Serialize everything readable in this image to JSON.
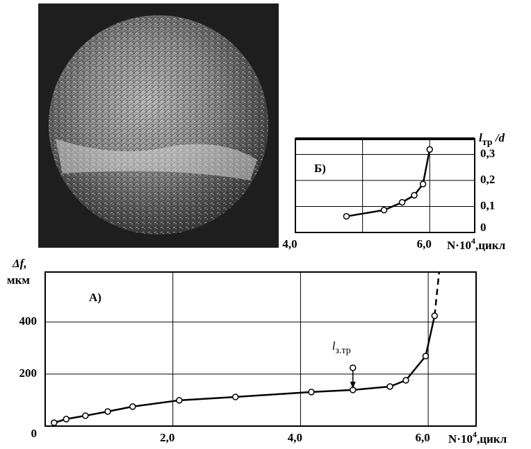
{
  "chart_data": [
    {
      "type": "line",
      "panel": "А)",
      "ylabel": {
        "main": "Δf,",
        "unit": "мкм"
      },
      "xlabel": {
        "main": "N·10",
        "sup": "4",
        "rest": ",цикл"
      },
      "x": [
        0.14,
        0.33,
        0.63,
        0.98,
        1.37,
        2.1,
        2.98,
        4.17,
        4.82,
        5.4,
        5.65,
        5.96,
        6.1
      ],
      "values": [
        13,
        27,
        40,
        56,
        75,
        99,
        112,
        131,
        139,
        152,
        176,
        269,
        424
      ],
      "extrapolation": {
        "x": [
          6.1,
          6.17
        ],
        "values": [
          424,
          590
        ]
      },
      "annotation": {
        "main": "l",
        "sub": "з.тр",
        "x": 4.82,
        "y": 224
      },
      "xlim": [
        0,
        6.75
      ],
      "ylim": [
        0,
        592
      ],
      "xticks": [
        {
          "value": 2,
          "label": "2,0"
        },
        {
          "value": 4,
          "label": "4,0"
        },
        {
          "value": 6,
          "label": "6,0"
        }
      ],
      "yticks": [
        0,
        200,
        400
      ],
      "grid": true,
      "color": "#000000"
    },
    {
      "type": "line",
      "panel": "Б)",
      "ylabel": {
        "main": "l",
        "sub": "тр",
        "rest": " /d"
      },
      "xlabel": {
        "main": "N·10",
        "sup": "4",
        "rest": ",цикл"
      },
      "x": [
        4.76,
        5.32,
        5.59,
        5.77,
        5.9,
        6.0
      ],
      "values": [
        0.062,
        0.086,
        0.116,
        0.143,
        0.186,
        0.319
      ],
      "xlim": [
        4,
        6.67
      ],
      "ylim": [
        0,
        0.36
      ],
      "xticks": [
        {
          "value": 4,
          "label": "4,0"
        },
        {
          "value": 5,
          "label": null
        },
        {
          "value": 6,
          "label": "6,0"
        }
      ],
      "yticks": [
        0,
        {
          "value": 0.1,
          "label": "0,1"
        },
        {
          "value": 0.2,
          "label": "0,2"
        },
        {
          "value": 0.3,
          "label": "0,3"
        }
      ],
      "grid": true,
      "color": "#000000"
    }
  ]
}
